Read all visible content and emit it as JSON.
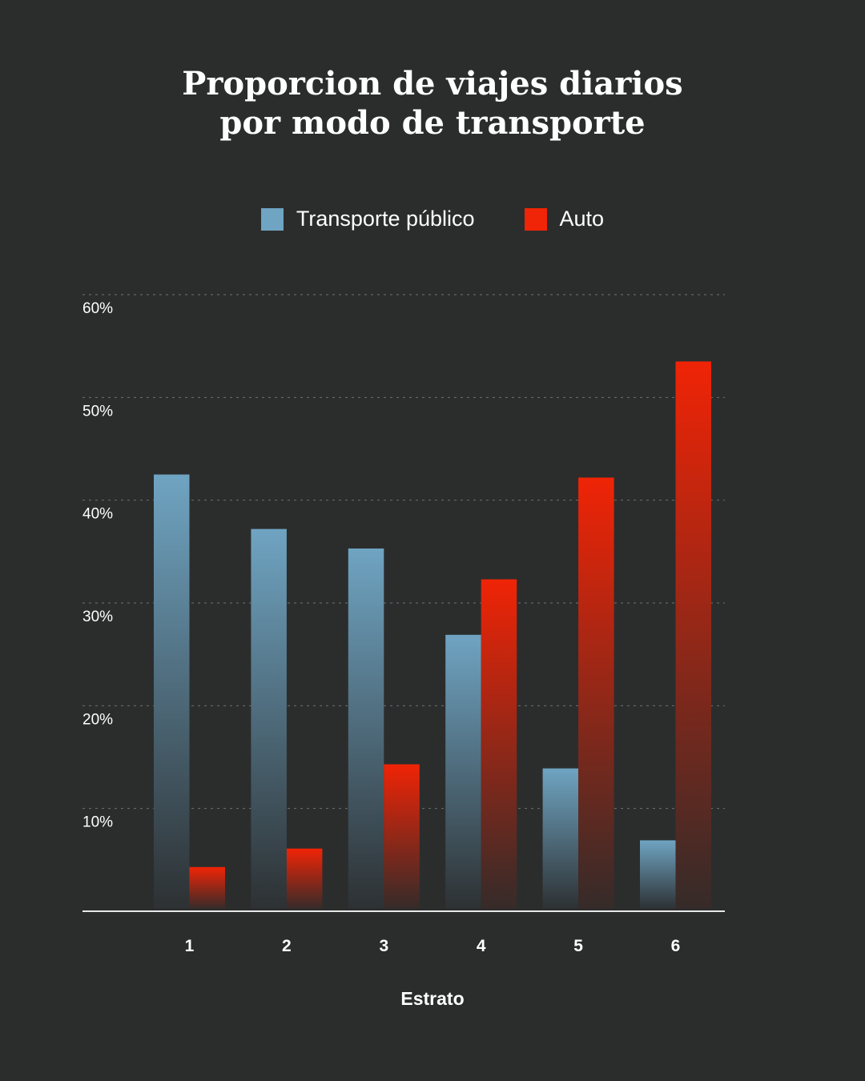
{
  "title_lines": [
    "Proporcion de viajes diarios",
    "por modo de transporte"
  ],
  "chart_data": {
    "type": "bar",
    "title": "Proporcion de viajes diarios por modo de transporte",
    "xlabel": "Estrato",
    "ylabel": "",
    "categories": [
      "1",
      "2",
      "3",
      "4",
      "5",
      "6"
    ],
    "series": [
      {
        "name": "Transporte público",
        "color": "#6fa4c2",
        "values": [
          42.5,
          37.2,
          35.3,
          26.9,
          13.9,
          6.9
        ]
      },
      {
        "name": "Auto",
        "color": "#f02406",
        "values": [
          4.3,
          6.1,
          14.3,
          32.3,
          42.2,
          53.5
        ]
      }
    ],
    "ylim": [
      0,
      60
    ],
    "yticks": [
      10,
      20,
      30,
      40,
      50,
      60
    ],
    "ytick_labels": [
      "10%",
      "20%",
      "30%",
      "40%",
      "50%",
      "60%"
    ],
    "grid": true,
    "legend_position": "top-center"
  }
}
